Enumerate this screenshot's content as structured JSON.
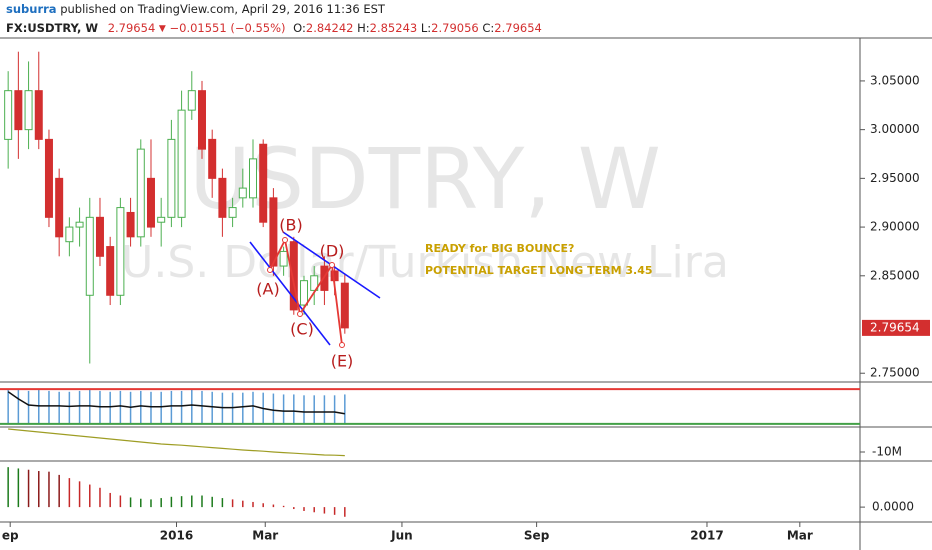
{
  "header": {
    "author": "suburra",
    "published": "published on TradingView.com, April 29, 2016 11:36 EST"
  },
  "quote": {
    "symbol": "FX:USDTRY, W",
    "last": "2.79654",
    "change": "−0.01551 (−0.55%)",
    "o_label": "O:",
    "o": "2.84242",
    "h_label": "H:",
    "h": "2.85243",
    "l_label": "L:",
    "l": "2.79056",
    "c_label": "C:",
    "c": "2.79654"
  },
  "chart_data": [
    {
      "type": "candlestick",
      "watermark": "USDTRY, W",
      "watermark_subtitle": "U.S. Dollar/Turkish New Lira",
      "annotations": [
        "READY for BIG BOUNCE?",
        "POTENTIAL TARGET LONG TERM 3.45"
      ],
      "wave_labels": [
        "(A)",
        "(B)",
        "(C)",
        "(D)",
        "(E)"
      ],
      "up_color": "#4caf50",
      "down_color": "#d32f2f",
      "open": [
        2.99,
        3.04,
        3.0,
        3.04,
        2.99,
        2.95,
        2.885,
        2.9,
        2.83,
        2.91,
        2.88,
        2.83,
        2.915,
        2.89,
        2.95,
        2.905,
        2.91,
        2.91,
        3.02,
        3.04,
        2.99,
        2.95,
        2.91,
        2.93,
        2.93,
        2.985,
        2.93,
        2.86,
        2.885,
        2.82,
        2.835,
        2.86,
        2.855,
        2.84242
      ],
      "high": [
        3.06,
        3.08,
        3.07,
        3.08,
        3.0,
        2.96,
        2.91,
        2.92,
        2.93,
        2.93,
        2.89,
        2.93,
        2.93,
        2.99,
        2.99,
        2.93,
        3.01,
        3.04,
        3.06,
        3.05,
        3.0,
        2.96,
        2.93,
        2.96,
        2.99,
        2.99,
        2.94,
        2.88,
        2.89,
        2.85,
        2.86,
        2.87,
        2.86,
        2.85243
      ],
      "low": [
        2.96,
        2.97,
        2.98,
        2.98,
        2.9,
        2.87,
        2.87,
        2.88,
        2.76,
        2.86,
        2.82,
        2.82,
        2.88,
        2.88,
        2.89,
        2.88,
        2.9,
        2.9,
        3.01,
        2.97,
        2.93,
        2.89,
        2.9,
        2.92,
        2.92,
        2.9,
        2.85,
        2.85,
        2.81,
        2.81,
        2.82,
        2.82,
        2.83,
        2.79056
      ],
      "close": [
        3.04,
        3.0,
        3.04,
        2.99,
        2.91,
        2.89,
        2.9,
        2.905,
        2.91,
        2.87,
        2.83,
        2.92,
        2.89,
        2.98,
        2.9,
        2.91,
        2.99,
        3.02,
        3.04,
        2.98,
        2.95,
        2.91,
        2.92,
        2.94,
        2.97,
        2.905,
        2.86,
        2.875,
        2.815,
        2.845,
        2.85,
        2.835,
        2.845,
        2.79654
      ],
      "ylim": [
        2.741,
        3.092
      ],
      "yticks": [
        {
          "value": 3.05,
          "label": "3.05000"
        },
        {
          "value": 3.0,
          "label": "3.00000"
        },
        {
          "value": 2.95,
          "label": "2.95000"
        },
        {
          "value": 2.9,
          "label": "2.90000"
        },
        {
          "value": 2.85,
          "label": "2.85000"
        },
        {
          "value": 2.75,
          "label": "2.75000"
        }
      ],
      "xlim": [
        -0.8,
        83.5
      ],
      "xticks": [
        {
          "value": 0.2,
          "label": "ep"
        },
        {
          "value": 16.5,
          "label": "2016"
        },
        {
          "value": 25.2,
          "label": "Mar"
        },
        {
          "value": 38.6,
          "label": "Jun"
        },
        {
          "value": 51.8,
          "label": "Sep"
        },
        {
          "value": 68.5,
          "label": "2017"
        },
        {
          "value": 77.6,
          "label": "Mar"
        }
      ],
      "grid": false
    },
    {
      "type": "bar-line",
      "bar_color": "#5b9bd5",
      "line_color": "#111111",
      "hlines": [
        {
          "value": 86,
          "color": "#e53935"
        },
        {
          "value": 7,
          "color": "#43a047"
        }
      ],
      "values": [
        86,
        84,
        82,
        84,
        82,
        80,
        80,
        82,
        84,
        82,
        80,
        82,
        80,
        82,
        80,
        80,
        82,
        82,
        84,
        82,
        80,
        78,
        78,
        78,
        80,
        78,
        76,
        74,
        74,
        72,
        72,
        72,
        72,
        74
      ],
      "line": [
        80,
        64,
        50,
        48,
        48,
        48,
        47,
        48,
        48,
        46,
        46,
        48,
        45,
        48,
        46,
        46,
        48,
        48,
        50,
        48,
        46,
        44,
        44,
        46,
        48,
        42,
        38,
        36,
        36,
        34,
        34,
        34,
        34,
        30
      ],
      "ylim": [
        0,
        100
      ]
    },
    {
      "type": "line",
      "color": "#9e9d24",
      "values": [
        1500000,
        1000000,
        500000,
        0,
        -500000,
        -1000000,
        -1500000,
        -2000000,
        -2500000,
        -3000000,
        -3500000,
        -4000000,
        -4500000,
        -5000000,
        -5500000,
        -6000000,
        -6300000,
        -6600000,
        -7000000,
        -7400000,
        -7800000,
        -8200000,
        -8600000,
        -9000000,
        -9300000,
        -9600000,
        -10000000,
        -10300000,
        -10600000,
        -10900000,
        -11200000,
        -11500000,
        -11600000,
        -11800000
      ],
      "ylim": [
        -14000000,
        2000000
      ],
      "yticks": [
        {
          "value": -10000000,
          "label": "-10M"
        }
      ]
    },
    {
      "type": "histogram",
      "values": [
        0.062,
        0.06,
        0.058,
        0.056,
        0.055,
        0.05,
        0.045,
        0.04,
        0.035,
        0.03,
        0.022,
        0.018,
        0.015,
        0.013,
        0.012,
        0.014,
        0.016,
        0.017,
        0.018,
        0.018,
        0.016,
        0.014,
        0.012,
        0.01,
        0.008,
        0.006,
        0.004,
        0.002,
        -0.003,
        -0.006,
        -0.008,
        -0.01,
        -0.012,
        -0.015
      ],
      "colors": [
        "#1b7a1b",
        "#1b7a1b",
        "#8b1a1a",
        "#8b1a1a",
        "#8b1a1a",
        "#8b1a1a",
        "#c62828",
        "#c62828",
        "#c62828",
        "#c62828",
        "#c62828",
        "#c62828",
        "#1b7a1b",
        "#1b7a1b",
        "#1b7a1b",
        "#1b7a1b",
        "#1b7a1b",
        "#1b7a1b",
        "#1b7a1b",
        "#1b7a1b",
        "#1b7a1b",
        "#1b7a1b",
        "#c62828",
        "#c62828",
        "#c62828",
        "#c62828",
        "#c62828",
        "#c62828",
        "#c62828",
        "#c62828",
        "#c62828",
        "#c62828",
        "#c62828",
        "#c62828"
      ],
      "ylim": [
        -0.02,
        0.07
      ],
      "yticks": [
        {
          "value": 0,
          "label": "0.0000"
        }
      ]
    }
  ]
}
